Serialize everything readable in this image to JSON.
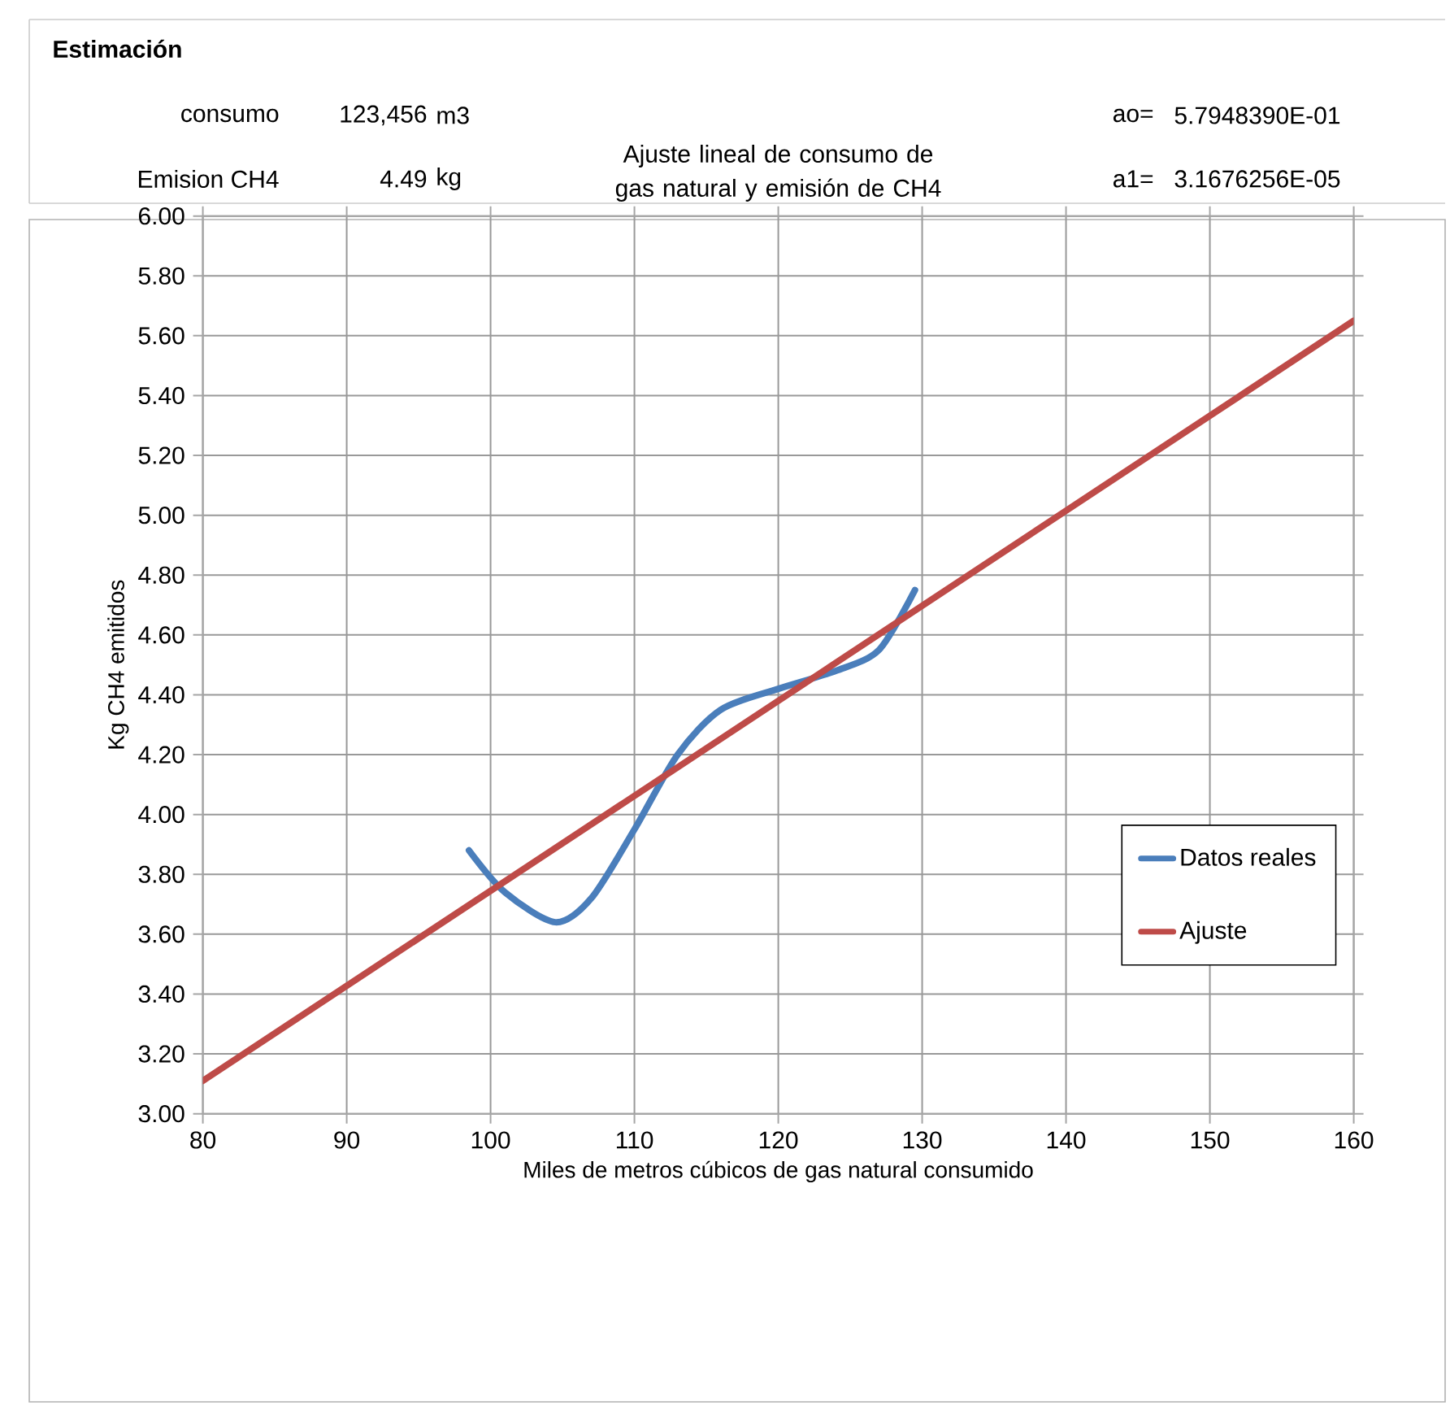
{
  "chart_data": {
    "type": "line",
    "title": "Ajuste lineal de consumo de gas natural y emisión de CH4",
    "xlabel": "Miles de metros cúbicos de gas natural consumido",
    "ylabel": "Kg CH4 emitidos",
    "xlim": [
      80,
      160
    ],
    "xticks": [
      80,
      90,
      100,
      110,
      120,
      130,
      140,
      150,
      160
    ],
    "ylim": [
      3.0,
      6.0
    ],
    "yticks": [
      {
        "value": 3.0,
        "label": "3.00"
      },
      {
        "value": 3.2,
        "label": "3.20"
      },
      {
        "value": 3.4,
        "label": "3.40"
      },
      {
        "value": 3.6,
        "label": "3.60"
      },
      {
        "value": 3.8,
        "label": "3.80"
      },
      {
        "value": 4.0,
        "label": "4.00"
      },
      {
        "value": 4.2,
        "label": "4.20"
      },
      {
        "value": 4.4,
        "label": "4.40"
      },
      {
        "value": 4.6,
        "label": "4.60"
      },
      {
        "value": 4.8,
        "label": "4.80"
      },
      {
        "value": 5.0,
        "label": "5.00"
      },
      {
        "value": 5.2,
        "label": "5.20"
      },
      {
        "value": 5.4,
        "label": "5.40"
      },
      {
        "value": 5.6,
        "label": "5.60"
      },
      {
        "value": 5.8,
        "label": "5.80"
      },
      {
        "value": 6.0,
        "label": "6.00"
      }
    ],
    "series": [
      {
        "name": "Datos reales",
        "color": "#4a7ebb",
        "x": [
          98.5,
          101,
          104.5,
          107,
          110,
          113,
          116,
          120,
          124,
          127,
          129.5
        ],
        "values": [
          3.88,
          3.74,
          3.64,
          3.72,
          3.95,
          4.2,
          4.35,
          4.42,
          4.48,
          4.55,
          4.75
        ]
      },
      {
        "name": "Ajuste",
        "color": "#be4b48",
        "x": [
          80,
          160
        ],
        "values": [
          3.11,
          5.65
        ]
      }
    ],
    "grid": true,
    "legend": "bottom right",
    "marker": "none",
    "line_style": "solid",
    "annotations": [
      "Estimación",
      "consumo",
      "123,456",
      "m3",
      "ao=",
      "5.7948390E-01",
      "Emision CH4",
      "4.49",
      "kg",
      "a1=",
      "3.1676256E-05"
    ]
  }
}
